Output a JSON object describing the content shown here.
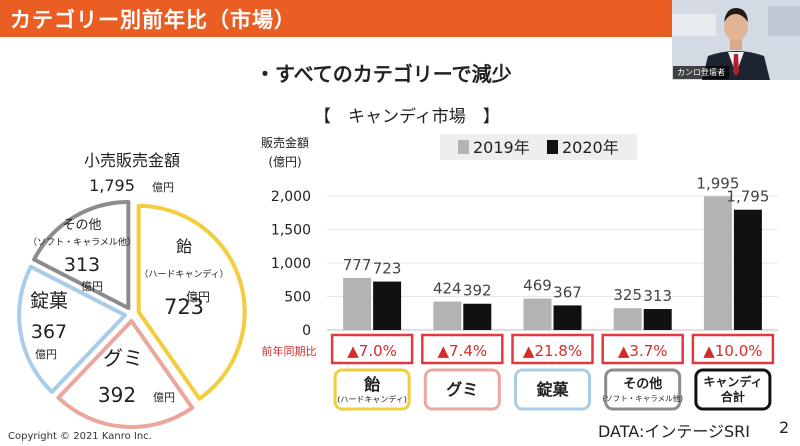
{
  "header": {
    "title": "カテゴリー別前年比（市場）",
    "speaker_label": "カンロ登壇者"
  },
  "subtitle": "・すべてのカテゴリーで減少",
  "footer": {
    "copyright": "Copyright © 2021 Kanro Inc.",
    "source": "DATA:インテージSRI",
    "page": "2"
  },
  "colors": {
    "accent": "#ea5e24",
    "series_2019": "#b3b3b3",
    "series_2020": "#111111",
    "yoy_border": "#e0393f",
    "yoy_text": "#d52b2b",
    "candy": "#f2cd3c",
    "gummy": "#eaa79d",
    "tablet": "#a9cce9",
    "other": "#8c8c8c",
    "total": "#111111"
  },
  "chart_data": [
    {
      "type": "pie",
      "title": "小売販売金額",
      "total_value": "1,795",
      "total_unit": "億円",
      "slices": [
        {
          "key": "candy",
          "name": "飴",
          "sub": "（ハードキャンディ）",
          "value": 723,
          "value_label": "723",
          "unit": "億円"
        },
        {
          "key": "gummy",
          "name": "グミ",
          "sub": "",
          "value": 392,
          "value_label": "392",
          "unit": "億円"
        },
        {
          "key": "tablet",
          "name": "錠菓",
          "sub": "",
          "value": 367,
          "value_label": "367",
          "unit": "億円"
        },
        {
          "key": "other",
          "name": "その他",
          "sub": "（ソフト・キャラメル他）",
          "value": 313,
          "value_label": "313",
          "unit": "億円"
        }
      ]
    },
    {
      "type": "bar",
      "title": "【　キャンディ市場　】",
      "ylabel": "販売金額",
      "ylabel_unit": "(億円)",
      "ylim": [
        0,
        2250
      ],
      "yticks": [
        0,
        500,
        1000,
        1500,
        2000
      ],
      "ytick_labels": [
        "0",
        "500",
        "1,000",
        "1,500",
        "2,000"
      ],
      "categories": [
        "飴",
        "グミ",
        "錠菓",
        "その他",
        "キャンディ合計"
      ],
      "category_labels": [
        {
          "main": "飴",
          "sub": "(ハードキャンディ)",
          "key": "candy"
        },
        {
          "main": "グミ",
          "sub": "",
          "key": "gummy"
        },
        {
          "main": "錠菓",
          "sub": "",
          "key": "tablet"
        },
        {
          "main": "その他",
          "sub": "(ソフト・キャラメル他)",
          "key": "other"
        },
        {
          "main": "キャンディ",
          "sub": "合計",
          "key": "total"
        }
      ],
      "series": [
        {
          "name": "2019年",
          "key": "series_2019",
          "values": [
            777,
            424,
            469,
            325,
            1995
          ],
          "labels": [
            "777",
            "424",
            "469",
            "325",
            "1,995"
          ]
        },
        {
          "name": "2020年",
          "key": "series_2020",
          "values": [
            723,
            392,
            367,
            313,
            1795
          ],
          "labels": [
            "723",
            "392",
            "367",
            "313",
            "1,795"
          ]
        }
      ],
      "yoy_label": "前年同期比",
      "yoy": [
        "▲7.0%",
        "▲7.4%",
        "▲21.8%",
        "▲3.7%",
        "▲10.0%"
      ],
      "legend_position": "top-right"
    }
  ]
}
